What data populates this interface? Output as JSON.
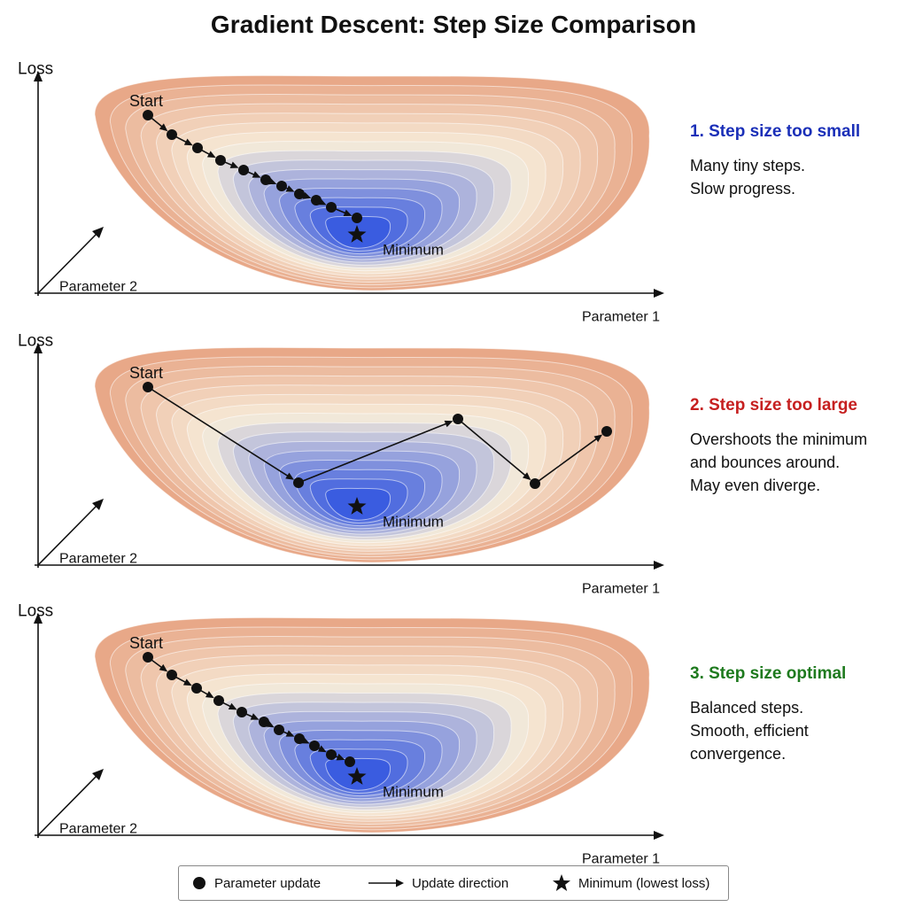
{
  "title": "Gradient Descent: Step Size Comparison",
  "labels": {
    "loss": "Loss",
    "parameter_1": "Parameter 1",
    "parameter_2": "Parameter 2",
    "start": "Start",
    "minimum": "Minimum"
  },
  "panels": [
    {
      "heading": "1. Step size too small",
      "heading_color": "#1a2fb8",
      "description": [
        "Many tiny steps.",
        "Slow progress."
      ]
    },
    {
      "heading": "2. Step size too large",
      "heading_color": "#c62020",
      "description": [
        "Overshoots the minimum",
        "and bounces around.",
        "May even diverge."
      ]
    },
    {
      "heading": "3. Step size optimal",
      "heading_color": "#1e7a1e",
      "description": [
        "Balanced steps.",
        "Smooth, efficient",
        "convergence."
      ]
    }
  ],
  "legend": {
    "parameter_update": "Parameter update",
    "update_direction": "Update direction",
    "minimum": "Minimum (lowest loss)"
  },
  "colors": {
    "contour_outer": "#e8a888",
    "contour_mid": "#f7ecd9",
    "contour_inner": "#3a5ce0",
    "ink": "#111111"
  },
  "icons": {
    "point": "filled-circle",
    "arrow": "arrow-right",
    "minimum": "star"
  }
}
